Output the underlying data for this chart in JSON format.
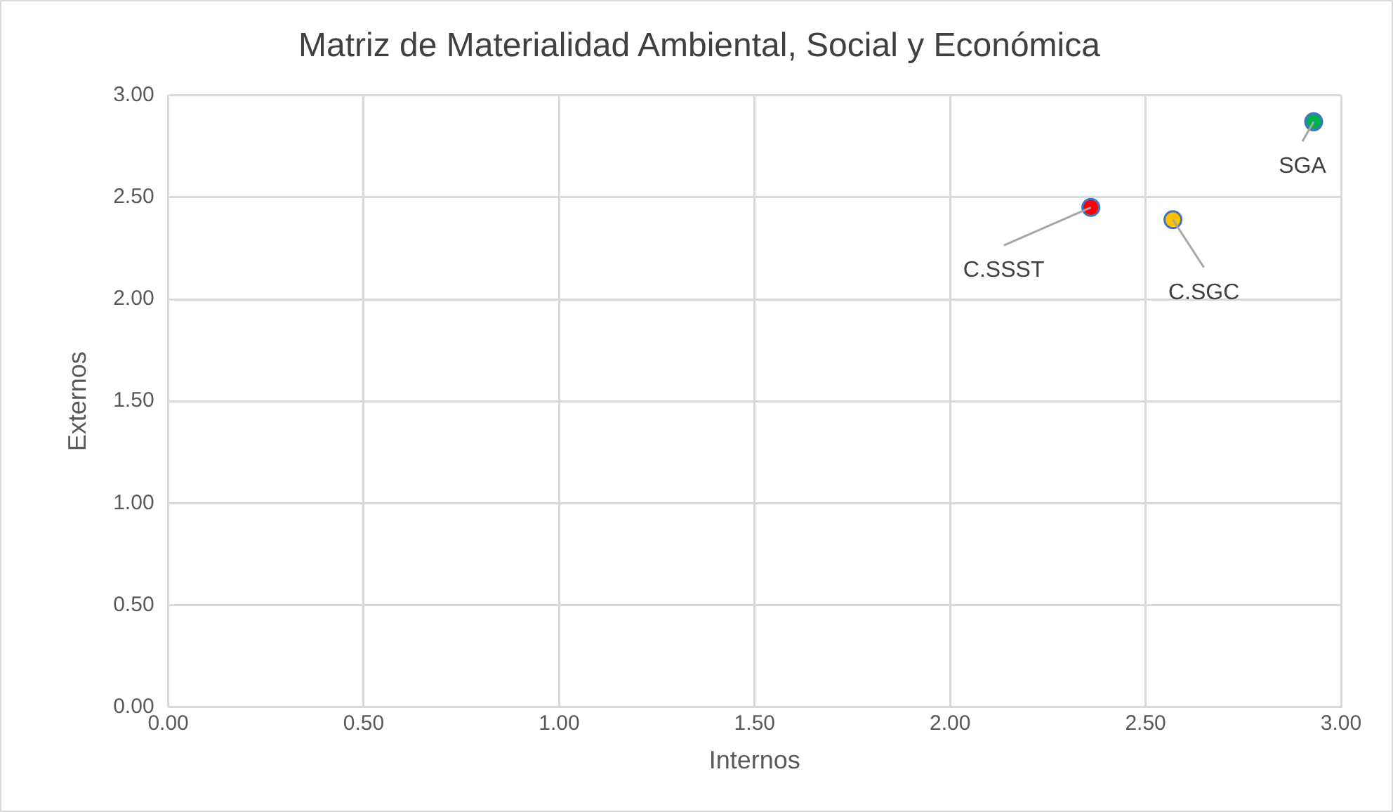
{
  "chart_data": {
    "type": "scatter",
    "title": "Matriz de Materialidad Ambiental, Social y Económica",
    "xlabel": "Internos",
    "ylabel": "Externos",
    "series": [
      {
        "name": "C.SSST",
        "color": "#ff0000",
        "x": [
          2.36
        ],
        "values": [
          2.45
        ]
      },
      {
        "name": "C.SGC",
        "color": "#ffc000",
        "x": [
          2.57
        ],
        "values": [
          2.39
        ]
      },
      {
        "name": "SGA",
        "color": "#00b050",
        "x": [
          2.93
        ],
        "values": [
          2.87
        ]
      }
    ],
    "xlim": [
      0,
      3
    ],
    "xticks": [
      {
        "value": 0,
        "label": "0.00"
      },
      {
        "value": 0.5,
        "label": "0.50"
      },
      {
        "value": 1,
        "label": "1.00"
      },
      {
        "value": 1.5,
        "label": "1.50"
      },
      {
        "value": 2,
        "label": "2.00"
      },
      {
        "value": 2.5,
        "label": "2.50"
      },
      {
        "value": 3,
        "label": "3.00"
      }
    ],
    "ylim": [
      0,
      3
    ],
    "yticks": [
      {
        "value": 0,
        "label": "0.00"
      },
      {
        "value": 0.5,
        "label": "0.50"
      },
      {
        "value": 1,
        "label": "1.00"
      },
      {
        "value": 1.5,
        "label": "1.50"
      },
      {
        "value": 2,
        "label": "2.00"
      },
      {
        "value": 2.5,
        "label": "2.50"
      },
      {
        "value": 3,
        "label": "3.00"
      }
    ],
    "grid": true,
    "legend": false,
    "marker": "circle"
  }
}
